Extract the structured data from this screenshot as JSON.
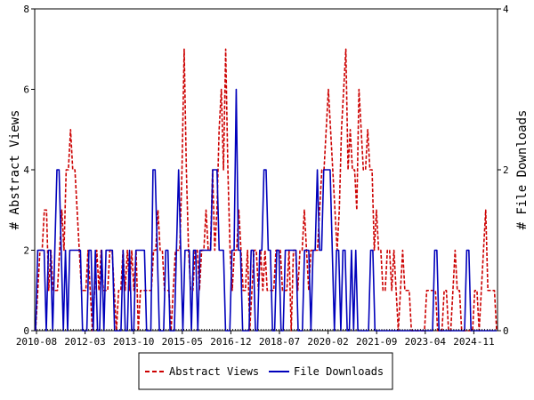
{
  "chart_data": {
    "type": "line",
    "xlabel": "",
    "ylabel_left": "# Abstract Views",
    "ylabel_right": "# File Downloads",
    "ylim_left": [
      0,
      8
    ],
    "ylim_right": [
      0,
      4
    ],
    "yticks_left": [
      "0",
      "2",
      "4",
      "6",
      "8"
    ],
    "yticks_right": [
      "0",
      "2",
      "4"
    ],
    "xticks": [
      "2010-08",
      "2012-03",
      "2013-10",
      "2015-05",
      "2016-12",
      "2018-07",
      "2020-02",
      "2021-09",
      "2023-04",
      "2024-11"
    ],
    "legend_position": "bottom-center",
    "series": [
      {
        "name": "Abstract Views",
        "axis": "left",
        "color": "#cc0000",
        "style": "dashed",
        "values": [
          0,
          1,
          2,
          2,
          3,
          3,
          1,
          2,
          1,
          1,
          1,
          2,
          3,
          2,
          4,
          4,
          5,
          4,
          4,
          3,
          2,
          1,
          1,
          1,
          2,
          1,
          0,
          1,
          2,
          1,
          2,
          1,
          1,
          1,
          2,
          2,
          1,
          0,
          1,
          1,
          2,
          1,
          2,
          1,
          2,
          1,
          2,
          0,
          1,
          1,
          1,
          1,
          1,
          1,
          2,
          2,
          3,
          2,
          2,
          1,
          1,
          1,
          0,
          1,
          2,
          2,
          2,
          4,
          7,
          4,
          2,
          1,
          1,
          2,
          2,
          1,
          2,
          2,
          3,
          2,
          2,
          4,
          2,
          3,
          5,
          6,
          4,
          7,
          4,
          2,
          1,
          2,
          2,
          3,
          2,
          1,
          1,
          2,
          0,
          1,
          2,
          2,
          1,
          2,
          1,
          2,
          1,
          1,
          1,
          1,
          2,
          2,
          2,
          1,
          1,
          1,
          2,
          0,
          2,
          2,
          1,
          2,
          2,
          3,
          2,
          1,
          2,
          2,
          2,
          2,
          3,
          4,
          4,
          5,
          6,
          5,
          4,
          3,
          2,
          3,
          5,
          6,
          7,
          4,
          5,
          4,
          4,
          3,
          6,
          5,
          4,
          4,
          5,
          4,
          4,
          2,
          3,
          2,
          2,
          1,
          1,
          2,
          2,
          1,
          2,
          1,
          0,
          1,
          2,
          1,
          1,
          1,
          0,
          0,
          0,
          0,
          0,
          0,
          0,
          1,
          1,
          1,
          1,
          1,
          0,
          0,
          0,
          1,
          1,
          0,
          0,
          1,
          2,
          1,
          1,
          0,
          0,
          0,
          0,
          0,
          0,
          1,
          1,
          0,
          1,
          2,
          3,
          1,
          1,
          1,
          1,
          0
        ]
      },
      {
        "name": "File Downloads",
        "axis": "right",
        "color": "#0000bb",
        "style": "solid",
        "values": [
          0,
          1,
          1,
          1,
          1,
          0,
          1,
          1,
          0,
          1,
          2,
          2,
          1,
          0,
          1,
          0,
          1,
          1,
          1,
          1,
          1,
          1,
          0,
          0,
          0,
          1,
          1,
          0,
          1,
          0,
          0,
          1,
          0,
          1,
          1,
          1,
          1,
          0,
          0,
          0,
          0,
          1,
          0,
          0,
          1,
          0,
          0,
          1,
          1,
          1,
          1,
          1,
          0,
          0,
          0,
          2,
          2,
          1,
          0,
          0,
          0,
          1,
          1,
          0,
          0,
          0,
          1,
          2,
          1,
          0,
          1,
          1,
          1,
          0,
          1,
          1,
          0,
          1,
          1,
          1,
          1,
          1,
          1,
          2,
          2,
          2,
          1,
          1,
          1,
          0,
          0,
          0,
          1,
          1,
          3,
          1,
          1,
          0,
          0,
          0,
          0,
          1,
          1,
          0,
          0,
          1,
          1,
          2,
          2,
          1,
          1,
          0,
          0,
          1,
          1,
          0,
          0,
          1,
          1,
          1,
          1,
          1,
          1,
          0,
          0,
          0,
          1,
          1,
          1,
          0,
          1,
          1,
          2,
          1,
          1,
          2,
          2,
          2,
          2,
          1,
          0,
          1,
          1,
          0,
          1,
          1,
          0,
          0,
          1,
          0,
          1,
          0,
          0,
          0,
          0,
          0,
          0,
          1,
          1,
          0,
          0,
          0,
          0,
          0,
          0,
          0,
          0,
          0,
          0,
          0,
          0,
          0,
          0,
          0,
          0,
          0,
          0,
          0,
          0,
          0,
          0,
          0,
          0,
          0,
          0,
          0,
          0,
          1,
          1,
          0,
          0,
          0,
          0,
          0,
          0,
          0,
          0,
          0,
          0,
          0,
          0,
          0,
          1,
          1,
          0,
          0,
          0,
          0,
          0,
          0,
          0,
          0,
          0,
          0,
          0,
          0,
          0
        ]
      }
    ]
  }
}
